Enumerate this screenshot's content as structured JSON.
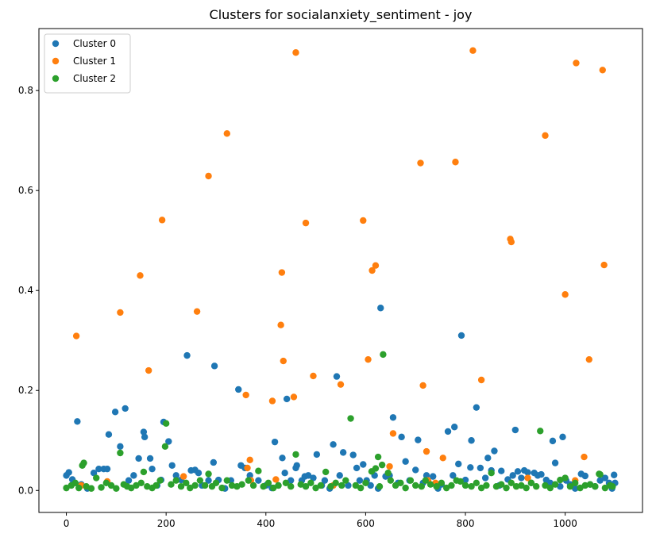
{
  "chart_data": {
    "type": "scatter",
    "title": "Clusters for socialanxiety_sentiment - joy",
    "xlabel": "",
    "ylabel": "",
    "xlim": [
      -55,
      1155
    ],
    "ylim": [
      -0.044,
      0.924
    ],
    "x_ticks": [
      0,
      200,
      400,
      600,
      800,
      1000
    ],
    "y_ticks": [
      0.0,
      0.2,
      0.4,
      0.6,
      0.8
    ],
    "x_tick_labels": [
      "0",
      "200",
      "400",
      "600",
      "800",
      "1000"
    ],
    "y_tick_labels": [
      "0.0",
      "0.2",
      "0.4",
      "0.6",
      "0.8"
    ],
    "grid": false,
    "legend_position": "top-left",
    "series": [
      {
        "name": "Cluster 0",
        "color": "#1f77b4",
        "points": [
          [
            0,
            0.03
          ],
          [
            5,
            0.036
          ],
          [
            12,
            0.022
          ],
          [
            22,
            0.138
          ],
          [
            30,
            0.012
          ],
          [
            42,
            0.004
          ],
          [
            55,
            0.035
          ],
          [
            65,
            0.043
          ],
          [
            75,
            0.043
          ],
          [
            82,
            0.043
          ],
          [
            85,
            0.112
          ],
          [
            98,
            0.157
          ],
          [
            108,
            0.088
          ],
          [
            118,
            0.164
          ],
          [
            125,
            0.02
          ],
          [
            135,
            0.03
          ],
          [
            145,
            0.064
          ],
          [
            155,
            0.117
          ],
          [
            157,
            0.107
          ],
          [
            168,
            0.064
          ],
          [
            172,
            0.043
          ],
          [
            182,
            0.01
          ],
          [
            190,
            0.021
          ],
          [
            195,
            0.137
          ],
          [
            205,
            0.098
          ],
          [
            212,
            0.05
          ],
          [
            220,
            0.03
          ],
          [
            230,
            0.021
          ],
          [
            242,
            0.27
          ],
          [
            250,
            0.04
          ],
          [
            258,
            0.041
          ],
          [
            265,
            0.035
          ],
          [
            272,
            0.01
          ],
          [
            285,
            0.02
          ],
          [
            295,
            0.056
          ],
          [
            297,
            0.249
          ],
          [
            305,
            0.021
          ],
          [
            318,
            0.004
          ],
          [
            330,
            0.02
          ],
          [
            345,
            0.202
          ],
          [
            350,
            0.05
          ],
          [
            358,
            0.045
          ],
          [
            368,
            0.03
          ],
          [
            385,
            0.02
          ],
          [
            400,
            0.01
          ],
          [
            412,
            0.005
          ],
          [
            418,
            0.097
          ],
          [
            425,
            0.01
          ],
          [
            433,
            0.065
          ],
          [
            438,
            0.035
          ],
          [
            442,
            0.183
          ],
          [
            450,
            0.02
          ],
          [
            460,
            0.045
          ],
          [
            462,
            0.05
          ],
          [
            472,
            0.02
          ],
          [
            478,
            0.028
          ],
          [
            485,
            0.03
          ],
          [
            495,
            0.025
          ],
          [
            502,
            0.072
          ],
          [
            512,
            0.01
          ],
          [
            518,
            0.02
          ],
          [
            528,
            0.004
          ],
          [
            535,
            0.092
          ],
          [
            542,
            0.228
          ],
          [
            548,
            0.03
          ],
          [
            555,
            0.076
          ],
          [
            565,
            0.01
          ],
          [
            575,
            0.071
          ],
          [
            582,
            0.045
          ],
          [
            588,
            0.02
          ],
          [
            595,
            0.052
          ],
          [
            602,
            0.02
          ],
          [
            610,
            0.01
          ],
          [
            618,
            0.03
          ],
          [
            625,
            0.004
          ],
          [
            630,
            0.365
          ],
          [
            640,
            0.028
          ],
          [
            648,
            0.03
          ],
          [
            655,
            0.146
          ],
          [
            665,
            0.015
          ],
          [
            672,
            0.107
          ],
          [
            680,
            0.058
          ],
          [
            688,
            0.02
          ],
          [
            700,
            0.041
          ],
          [
            705,
            0.101
          ],
          [
            715,
            0.015
          ],
          [
            722,
            0.03
          ],
          [
            735,
            0.028
          ],
          [
            745,
            0.004
          ],
          [
            752,
            0.012
          ],
          [
            765,
            0.118
          ],
          [
            775,
            0.03
          ],
          [
            778,
            0.127
          ],
          [
            786,
            0.053
          ],
          [
            792,
            0.31
          ],
          [
            800,
            0.021
          ],
          [
            810,
            0.046
          ],
          [
            812,
            0.1
          ],
          [
            822,
            0.166
          ],
          [
            830,
            0.045
          ],
          [
            840,
            0.025
          ],
          [
            845,
            0.065
          ],
          [
            852,
            0.04
          ],
          [
            858,
            0.079
          ],
          [
            868,
            0.01
          ],
          [
            872,
            0.039
          ],
          [
            885,
            0.022
          ],
          [
            895,
            0.03
          ],
          [
            900,
            0.121
          ],
          [
            905,
            0.038
          ],
          [
            912,
            0.025
          ],
          [
            918,
            0.04
          ],
          [
            925,
            0.036
          ],
          [
            932,
            0.015
          ],
          [
            938,
            0.035
          ],
          [
            945,
            0.03
          ],
          [
            952,
            0.032
          ],
          [
            962,
            0.021
          ],
          [
            970,
            0.015
          ],
          [
            975,
            0.099
          ],
          [
            980,
            0.055
          ],
          [
            990,
            0.008
          ],
          [
            995,
            0.107
          ],
          [
            1002,
            0.02
          ],
          [
            1010,
            0.012
          ],
          [
            1020,
            0.004
          ],
          [
            1032,
            0.033
          ],
          [
            1040,
            0.029
          ],
          [
            1050,
            0.012
          ],
          [
            1060,
            0.008
          ],
          [
            1070,
            0.02
          ],
          [
            1080,
            0.025
          ],
          [
            1088,
            0.015
          ],
          [
            1094,
            0.004
          ],
          [
            1098,
            0.031
          ],
          [
            1100,
            0.015
          ]
        ]
      },
      {
        "name": "Cluster 1",
        "color": "#ff7f0e",
        "points": [
          [
            20,
            0.309
          ],
          [
            30,
            0.01
          ],
          [
            82,
            0.018
          ],
          [
            108,
            0.356
          ],
          [
            148,
            0.43
          ],
          [
            165,
            0.24
          ],
          [
            192,
            0.541
          ],
          [
            235,
            0.028
          ],
          [
            262,
            0.358
          ],
          [
            285,
            0.629
          ],
          [
            322,
            0.714
          ],
          [
            360,
            0.191
          ],
          [
            363,
            0.045
          ],
          [
            368,
            0.061
          ],
          [
            370,
            0.02
          ],
          [
            413,
            0.179
          ],
          [
            420,
            0.022
          ],
          [
            430,
            0.331
          ],
          [
            432,
            0.436
          ],
          [
            435,
            0.259
          ],
          [
            456,
            0.187
          ],
          [
            460,
            0.876
          ],
          [
            480,
            0.535
          ],
          [
            495,
            0.229
          ],
          [
            535,
            0.01
          ],
          [
            550,
            0.212
          ],
          [
            595,
            0.54
          ],
          [
            605,
            0.262
          ],
          [
            613,
            0.44
          ],
          [
            620,
            0.45
          ],
          [
            648,
            0.048
          ],
          [
            655,
            0.114
          ],
          [
            710,
            0.655
          ],
          [
            715,
            0.21
          ],
          [
            722,
            0.078
          ],
          [
            725,
            0.02
          ],
          [
            740,
            0.015
          ],
          [
            755,
            0.065
          ],
          [
            780,
            0.657
          ],
          [
            815,
            0.88
          ],
          [
            832,
            0.221
          ],
          [
            890,
            0.503
          ],
          [
            892,
            0.497
          ],
          [
            925,
            0.025
          ],
          [
            960,
            0.71
          ],
          [
            1000,
            0.392
          ],
          [
            1020,
            0.02
          ],
          [
            1022,
            0.855
          ],
          [
            1038,
            0.067
          ],
          [
            1048,
            0.262
          ],
          [
            1075,
            0.841
          ],
          [
            1078,
            0.451
          ]
        ]
      },
      {
        "name": "Cluster 2",
        "color": "#2ca02c",
        "points": [
          [
            0,
            0.005
          ],
          [
            10,
            0.01
          ],
          [
            18,
            0.015
          ],
          [
            25,
            0.005
          ],
          [
            32,
            0.05
          ],
          [
            35,
            0.055
          ],
          [
            40,
            0.008
          ],
          [
            50,
            0.004
          ],
          [
            60,
            0.025
          ],
          [
            70,
            0.006
          ],
          [
            80,
            0.015
          ],
          [
            90,
            0.01
          ],
          [
            100,
            0.004
          ],
          [
            108,
            0.075
          ],
          [
            115,
            0.012
          ],
          [
            122,
            0.008
          ],
          [
            130,
            0.005
          ],
          [
            140,
            0.01
          ],
          [
            150,
            0.015
          ],
          [
            155,
            0.037
          ],
          [
            162,
            0.008
          ],
          [
            172,
            0.005
          ],
          [
            180,
            0.01
          ],
          [
            188,
            0.02
          ],
          [
            198,
            0.088
          ],
          [
            200,
            0.134
          ],
          [
            210,
            0.012
          ],
          [
            220,
            0.02
          ],
          [
            230,
            0.008
          ],
          [
            240,
            0.015
          ],
          [
            248,
            0.005
          ],
          [
            258,
            0.01
          ],
          [
            268,
            0.02
          ],
          [
            278,
            0.01
          ],
          [
            285,
            0.033
          ],
          [
            292,
            0.008
          ],
          [
            300,
            0.015
          ],
          [
            312,
            0.005
          ],
          [
            322,
            0.02
          ],
          [
            332,
            0.01
          ],
          [
            342,
            0.008
          ],
          [
            352,
            0.012
          ],
          [
            365,
            0.02
          ],
          [
            375,
            0.01
          ],
          [
            385,
            0.039
          ],
          [
            395,
            0.008
          ],
          [
            405,
            0.015
          ],
          [
            415,
            0.005
          ],
          [
            425,
            0.01
          ],
          [
            440,
            0.015
          ],
          [
            450,
            0.008
          ],
          [
            460,
            0.072
          ],
          [
            470,
            0.012
          ],
          [
            480,
            0.008
          ],
          [
            490,
            0.015
          ],
          [
            500,
            0.005
          ],
          [
            510,
            0.01
          ],
          [
            520,
            0.037
          ],
          [
            530,
            0.008
          ],
          [
            540,
            0.015
          ],
          [
            552,
            0.01
          ],
          [
            560,
            0.02
          ],
          [
            570,
            0.144
          ],
          [
            580,
            0.01
          ],
          [
            590,
            0.005
          ],
          [
            600,
            0.015
          ],
          [
            612,
            0.038
          ],
          [
            620,
            0.044
          ],
          [
            625,
            0.067
          ],
          [
            628,
            0.008
          ],
          [
            633,
            0.051
          ],
          [
            635,
            0.272
          ],
          [
            645,
            0.035
          ],
          [
            650,
            0.02
          ],
          [
            660,
            0.01
          ],
          [
            670,
            0.015
          ],
          [
            680,
            0.005
          ],
          [
            690,
            0.02
          ],
          [
            700,
            0.01
          ],
          [
            712,
            0.008
          ],
          [
            720,
            0.02
          ],
          [
            730,
            0.012
          ],
          [
            742,
            0.008
          ],
          [
            752,
            0.015
          ],
          [
            762,
            0.005
          ],
          [
            772,
            0.01
          ],
          [
            782,
            0.02
          ],
          [
            790,
            0.018
          ],
          [
            800,
            0.01
          ],
          [
            812,
            0.008
          ],
          [
            822,
            0.015
          ],
          [
            832,
            0.005
          ],
          [
            842,
            0.01
          ],
          [
            852,
            0.035
          ],
          [
            862,
            0.008
          ],
          [
            872,
            0.012
          ],
          [
            882,
            0.005
          ],
          [
            892,
            0.015
          ],
          [
            902,
            0.008
          ],
          [
            912,
            0.01
          ],
          [
            922,
            0.005
          ],
          [
            932,
            0.015
          ],
          [
            942,
            0.008
          ],
          [
            950,
            0.119
          ],
          [
            960,
            0.01
          ],
          [
            970,
            0.005
          ],
          [
            980,
            0.012
          ],
          [
            990,
            0.021
          ],
          [
            1000,
            0.025
          ],
          [
            1010,
            0.008
          ],
          [
            1020,
            0.015
          ],
          [
            1030,
            0.005
          ],
          [
            1040,
            0.01
          ],
          [
            1050,
            0.012
          ],
          [
            1060,
            0.008
          ],
          [
            1068,
            0.033
          ],
          [
            1070,
            0.032
          ],
          [
            1080,
            0.005
          ],
          [
            1090,
            0.01
          ],
          [
            1095,
            0.008
          ]
        ]
      }
    ]
  }
}
